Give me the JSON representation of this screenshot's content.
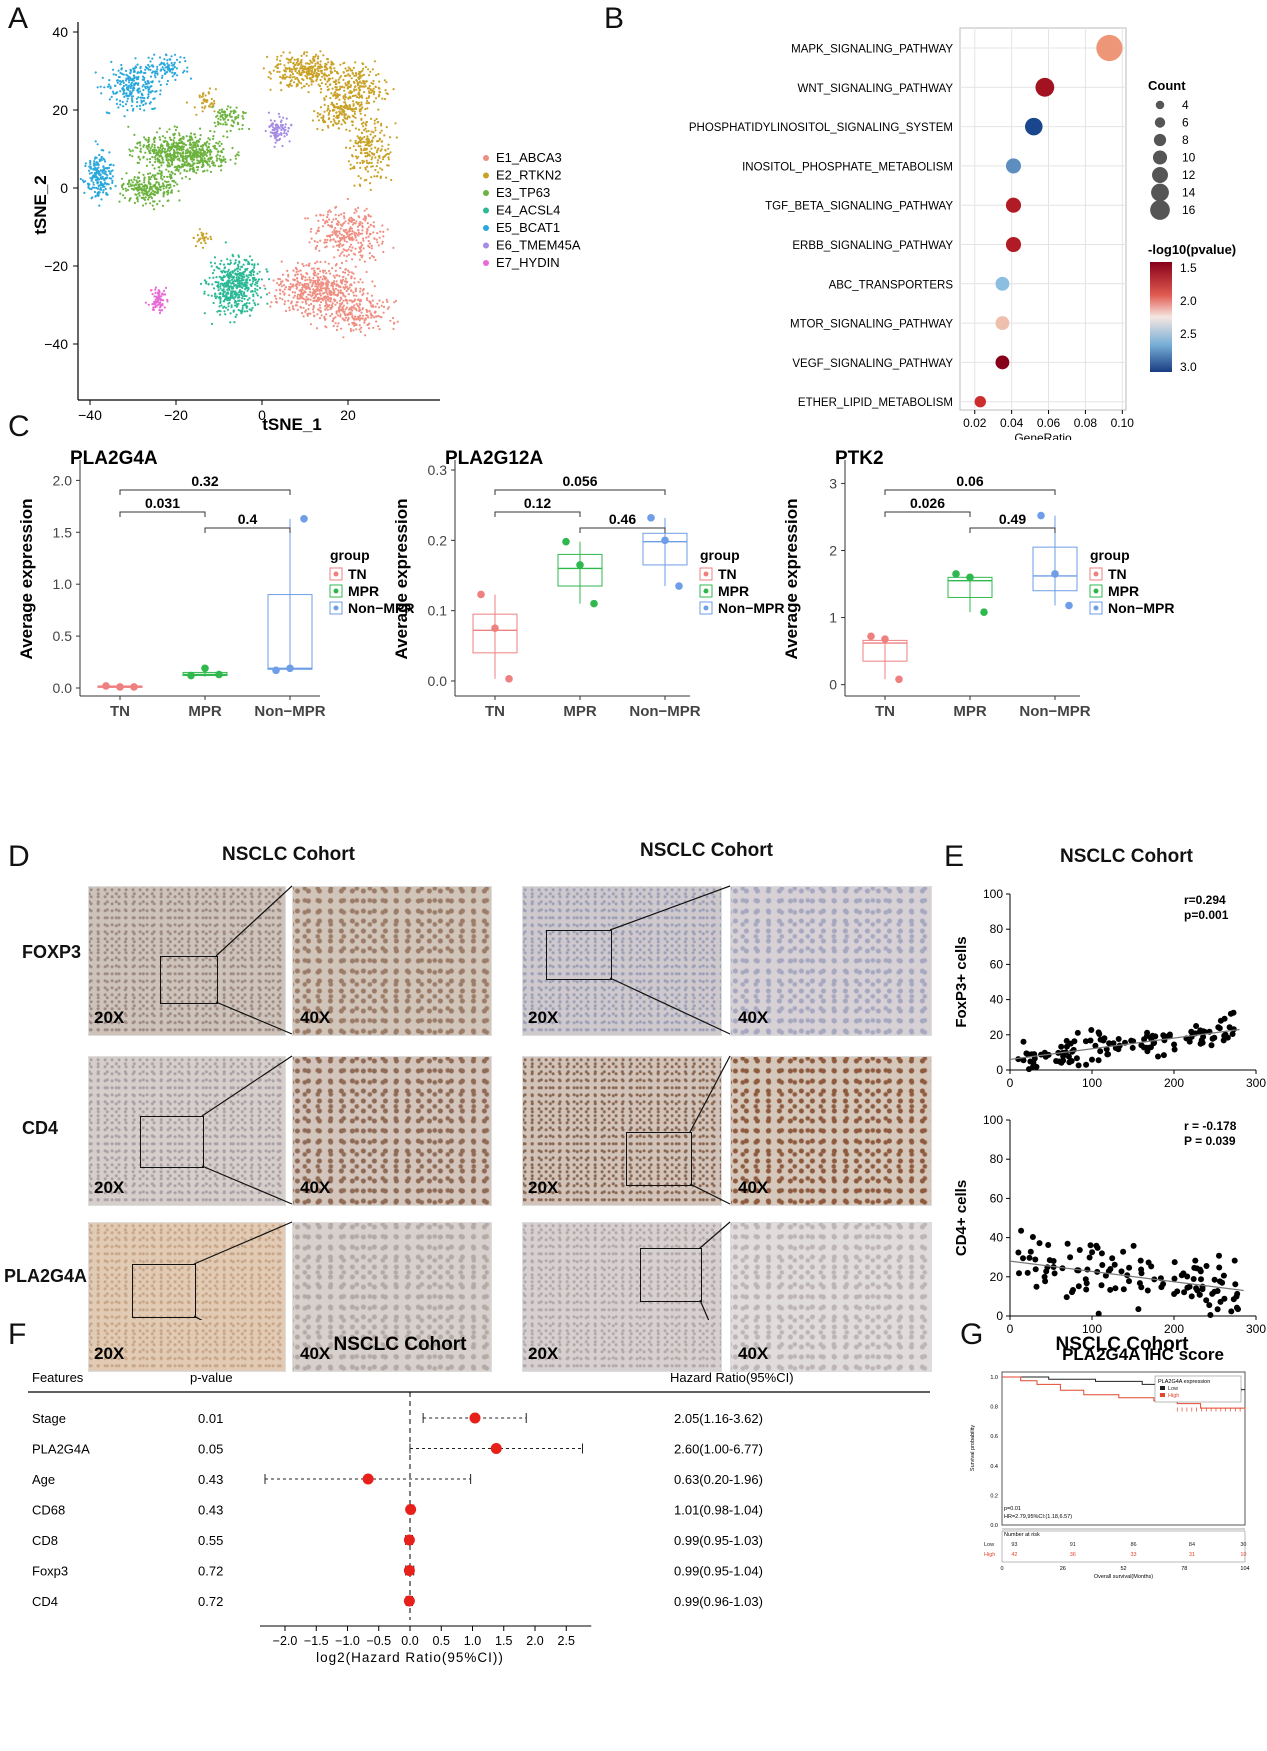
{
  "panels": {
    "A": "A",
    "B": "B",
    "C": "C",
    "D": "D",
    "E": "E",
    "F": "F",
    "G": "G"
  },
  "colors": {
    "E1_ABCA3": "#ef8f82",
    "E2_RTKN2": "#c9a227",
    "E3_TP63": "#6db33f",
    "E4_ACSL4": "#2bb996",
    "E5_BCAT1": "#2aa8dc",
    "E6_TMEM45A": "#a58be5",
    "E7_HYDIN": "#e96bd6",
    "TN": "#ef8080",
    "MPR": "#2fb84e",
    "NonMPR": "#6f9ee8",
    "red": "#e8201a"
  },
  "panel_a": {
    "xlabel": "tSNE_1",
    "ylabel": "tSNE_2",
    "xticks": [
      "−40",
      "−20",
      "0",
      "20"
    ],
    "yticks": [
      "40",
      "20",
      "0",
      "−20",
      "−40"
    ],
    "legend": [
      "E1_ABCA3",
      "E2_RTKN2",
      "E3_TP63",
      "E4_ACSL4",
      "E5_BCAT1",
      "E6_TMEM45A",
      "E7_HYDIN"
    ]
  },
  "chart_data": [
    {
      "id": "B",
      "type": "scatter",
      "xlabel": "GeneRatio",
      "xlim": [
        0.012,
        0.102
      ],
      "xticks": [
        "0.02",
        "0.04",
        "0.06",
        "0.08",
        "0.10"
      ],
      "categories": [
        "MAPK_SIGNALING_PATHWAY",
        "WNT_SIGNALING_PATHWAY",
        "PHOSPHATIDYLINOSITOL_SIGNALING_SYSTEM",
        "INOSITOL_PHOSPHATE_METABOLISM",
        "TGF_BETA_SIGNALING_PATHWAY",
        "ERBB_SIGNALING_PATHWAY",
        "ABC_TRANSPORTERS",
        "MTOR_SIGNALING_PATHWAY",
        "VEGF_SIGNALING_PATHWAY",
        "ETHER_LIPID_METABOLISM"
      ],
      "gene_ratio": [
        0.093,
        0.058,
        0.052,
        0.041,
        0.041,
        0.041,
        0.035,
        0.035,
        0.035,
        0.023
      ],
      "count": [
        16,
        10,
        9,
        7,
        7,
        7,
        6,
        6,
        6,
        4
      ],
      "neg_log10_pvalue": [
        2.0,
        1.45,
        3.0,
        2.7,
        1.5,
        1.5,
        2.5,
        2.1,
        1.35,
        1.6
      ],
      "size_legend_title": "Count",
      "size_legend": [
        "4",
        "6",
        "8",
        "10",
        "12",
        "14",
        "16"
      ],
      "color_legend_title": "-log10(pvalue)",
      "color_legend": [
        "1.5",
        "2.0",
        "2.5",
        "3.0"
      ]
    },
    {
      "id": "C1",
      "type": "box",
      "title": "PLA2G4A",
      "ylabel": "Average expression",
      "categories": [
        "TN",
        "MPR",
        "Non−MPR"
      ],
      "ylim": [
        0,
        2.1
      ],
      "yticks": [
        "0.0",
        "0.5",
        "1.0",
        "1.5",
        "2.0"
      ],
      "points": [
        [
          0.02,
          0.01,
          0.01
        ],
        [
          0.12,
          0.19,
          0.13
        ],
        [
          0.17,
          0.19,
          1.63
        ]
      ],
      "box": [
        [
          0.0,
          0.01,
          0.015,
          0.02,
          0.025
        ],
        [
          0.11,
          0.12,
          0.13,
          0.15,
          0.19
        ],
        [
          0.17,
          0.18,
          0.19,
          0.9,
          1.63
        ]
      ],
      "brackets": [
        {
          "from": 0,
          "to": 1,
          "label": "0.031"
        },
        {
          "from": 1,
          "to": 2,
          "label": "0.4"
        },
        {
          "from": 0,
          "to": 2,
          "label": "0.32"
        }
      ],
      "legend_title": "group",
      "legend": [
        "TN",
        "MPR",
        "Non−MPR"
      ]
    },
    {
      "id": "C2",
      "type": "box",
      "title": "PLA2G12A",
      "ylabel": "Average expression",
      "categories": [
        "TN",
        "MPR",
        "Non−MPR"
      ],
      "ylim": [
        -0.01,
        0.3
      ],
      "yticks": [
        "0.0",
        "0.1",
        "0.2",
        "0.3"
      ],
      "points": [
        [
          0.123,
          0.075,
          0.003
        ],
        [
          0.198,
          0.165,
          0.11
        ],
        [
          0.232,
          0.2,
          0.135
        ]
      ],
      "box": [
        [
          0.003,
          0.04,
          0.072,
          0.095,
          0.123
        ],
        [
          0.11,
          0.135,
          0.16,
          0.18,
          0.198
        ],
        [
          0.135,
          0.165,
          0.198,
          0.21,
          0.232
        ]
      ],
      "brackets": [
        {
          "from": 0,
          "to": 1,
          "label": "0.12"
        },
        {
          "from": 1,
          "to": 2,
          "label": "0.46"
        },
        {
          "from": 0,
          "to": 2,
          "label": "0.056"
        }
      ],
      "legend_title": "group",
      "legend": [
        "TN",
        "MPR",
        "Non−MPR"
      ]
    },
    {
      "id": "C3",
      "type": "box",
      "title": "PTK2",
      "ylabel": "Average expression",
      "categories": [
        "TN",
        "MPR",
        "Non−MPR"
      ],
      "ylim": [
        -0.05,
        3.2
      ],
      "yticks": [
        "0",
        "1",
        "2",
        "3"
      ],
      "points": [
        [
          0.72,
          0.68,
          0.08
        ],
        [
          1.65,
          1.6,
          1.08
        ],
        [
          2.52,
          1.65,
          1.18
        ]
      ],
      "box": [
        [
          0.08,
          0.35,
          0.62,
          0.66,
          0.72
        ],
        [
          1.08,
          1.3,
          1.55,
          1.6,
          1.65
        ],
        [
          1.18,
          1.4,
          1.62,
          2.05,
          2.52
        ]
      ],
      "brackets": [
        {
          "from": 0,
          "to": 1,
          "label": "0.026"
        },
        {
          "from": 1,
          "to": 2,
          "label": "0.49"
        },
        {
          "from": 0,
          "to": 2,
          "label": "0.06"
        }
      ],
      "legend_title": "group",
      "legend": [
        "TN",
        "MPR",
        "Non−MPR"
      ]
    },
    {
      "id": "E1",
      "type": "scatter",
      "ylabel": "FoxP3+ cells",
      "xlim": [
        0,
        300
      ],
      "ylim": [
        0,
        100
      ],
      "xticks": [
        "0",
        "100",
        "200",
        "300"
      ],
      "yticks": [
        "0",
        "20",
        "40",
        "60",
        "80",
        "100"
      ],
      "annotation": [
        "r=0.294",
        "p=0.001"
      ],
      "trend": [
        [
          0,
          6
        ],
        [
          280,
          23
        ]
      ],
      "n_points": 120
    },
    {
      "id": "E2",
      "type": "scatter",
      "ylabel": "CD4+ cells",
      "xlabel": "PLA2G4A IHC score",
      "xlim": [
        0,
        300
      ],
      "ylim": [
        0,
        100
      ],
      "xticks": [
        "0",
        "100",
        "200",
        "300"
      ],
      "yticks": [
        "0",
        "20",
        "40",
        "60",
        "80",
        "100"
      ],
      "annotation": [
        "r = -0.178",
        "P = 0.039"
      ],
      "trend": [
        [
          0,
          28
        ],
        [
          285,
          13
        ]
      ],
      "n_points": 120
    },
    {
      "id": "F",
      "type": "forest",
      "title": "NSCLC Cohort",
      "xlabel": "log2(Hazard Ratio(95%CI))",
      "xticks": [
        "−2.0",
        "−1.5",
        "−1.0",
        "−0.5",
        "0.0",
        "0.5",
        "1.0",
        "1.5",
        "2.0",
        "2.5"
      ],
      "headers": [
        "Features",
        "p-value",
        "Hazard Ratio(95%CI)"
      ],
      "rows": [
        {
          "feature": "Stage",
          "p": "0.01",
          "hr": "2.05(1.16-3.62)",
          "est": 1.04,
          "lo": 0.21,
          "hi": 1.86
        },
        {
          "feature": "PLA2G4A",
          "p": "0.05",
          "hr": "2.60(1.00-6.77)",
          "est": 1.38,
          "lo": 0.0,
          "hi": 2.76
        },
        {
          "feature": "Age",
          "p": "0.43",
          "hr": "0.63(0.20-1.96)",
          "est": -0.67,
          "lo": -2.32,
          "hi": 0.97
        },
        {
          "feature": "CD68",
          "p": "0.43",
          "hr": "1.01(0.98-1.04)",
          "est": 0.01,
          "lo": -0.03,
          "hi": 0.06
        },
        {
          "feature": "CD8",
          "p": "0.55",
          "hr": "0.99(0.95-1.03)",
          "est": -0.01,
          "lo": -0.07,
          "hi": 0.04
        },
        {
          "feature": "Foxp3",
          "p": "0.72",
          "hr": "0.99(0.95-1.04)",
          "est": -0.01,
          "lo": -0.07,
          "hi": 0.06
        },
        {
          "feature": "CD4",
          "p": "0.72",
          "hr": "0.99(0.96-1.03)",
          "est": -0.01,
          "lo": -0.06,
          "hi": 0.04
        }
      ]
    },
    {
      "id": "G",
      "type": "line",
      "title": "NSCLC Cohort",
      "xlabel": "Overall survival(Months)",
      "ylabel": "Survival probability",
      "xticks": [
        "0",
        "26",
        "52",
        "78",
        "104"
      ],
      "yticks": [
        "1.0",
        "0.8",
        "0.6",
        "0.4",
        "0.2",
        "0.0"
      ],
      "legend_title": "PLA2G4A expression",
      "series": [
        {
          "name": "Low",
          "x": [
            0,
            20,
            40,
            60,
            70,
            80,
            90,
            104
          ],
          "y": [
            1.0,
            0.985,
            0.97,
            0.95,
            0.935,
            0.92,
            0.915,
            0.915
          ]
        },
        {
          "name": "High",
          "x": [
            0,
            8,
            15,
            25,
            35,
            50,
            65,
            75,
            85,
            104
          ],
          "y": [
            1.0,
            0.975,
            0.95,
            0.91,
            0.88,
            0.86,
            0.84,
            0.82,
            0.79,
            0.78
          ]
        }
      ],
      "stats": [
        "p=0.01",
        "HR=2.79,95%CI:(1.18,6.57)"
      ],
      "risk_title": "Number at risk",
      "risk_rows": [
        {
          "label": "Low",
          "values": [
            "93",
            "91",
            "86",
            "84",
            "30"
          ]
        },
        {
          "label": "High",
          "values": [
            "42",
            "36",
            "33",
            "31",
            "10"
          ]
        }
      ]
    }
  ],
  "panel_d": {
    "cohort_left": "NSCLC Cohort",
    "cohort_right": "NSCLC Cohort",
    "rows": [
      "FOXP3",
      "CD4",
      "PLA2G4A"
    ],
    "mag_low": "20X",
    "mag_high": "40X"
  },
  "panel_e": {
    "title": "NSCLC Cohort"
  }
}
